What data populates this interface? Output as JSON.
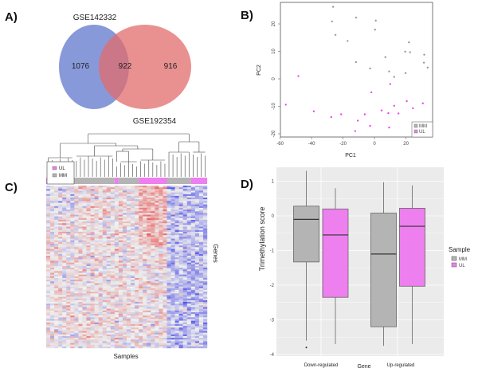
{
  "panels": {
    "a": "A)",
    "b": "B)",
    "c": "C)",
    "d": "D)"
  },
  "colors": {
    "blue": "#6a80cf",
    "red": "#e26c6c",
    "mm": "#b4b4b4",
    "ul": "#ee7fee",
    "mm_point": "#9a9a9a",
    "ul_point": "#ee44ee"
  },
  "chart_data": [
    {
      "type": "venn",
      "sets": [
        {
          "name": "GSE142332",
          "only": 1076
        },
        {
          "name": "GSE192354",
          "only": 916
        }
      ],
      "intersection": 922
    },
    {
      "type": "scatter",
      "xlabel": "PC1",
      "ylabel": "PC2",
      "xlim": [
        -60,
        37
      ],
      "ylim": [
        -21,
        28
      ],
      "xticks": [
        -60,
        -40,
        -20,
        0,
        20
      ],
      "yticks": [
        -20,
        -10,
        0,
        10,
        20
      ],
      "legend": {
        "position": "bottom-right",
        "entries": [
          "MM",
          "UL"
        ]
      },
      "series": [
        {
          "name": "MM",
          "points": [
            [
              -26.3,
              26.2
            ],
            [
              -27,
              20.9
            ],
            [
              -11.7,
              22.3
            ],
            [
              0.8,
              21.2
            ],
            [
              0.3,
              17.9
            ],
            [
              -24.8,
              16
            ],
            [
              -17.1,
              13.8
            ],
            [
              21.9,
              13.3
            ],
            [
              19.5,
              9.9
            ],
            [
              22.6,
              9.7
            ],
            [
              31.6,
              8.8
            ],
            [
              6.9,
              7.9
            ],
            [
              -11.8,
              6.1
            ],
            [
              31.4,
              5.9
            ],
            [
              33.8,
              4.1
            ],
            [
              -2.8,
              3.8
            ],
            [
              9.3,
              2.7
            ],
            [
              19.7,
              2.1
            ],
            [
              12.5,
              0.7
            ]
          ]
        },
        {
          "name": "UL",
          "points": [
            [
              -48.4,
              1.0
            ],
            [
              10,
              -1.9
            ],
            [
              -2,
              -4.9
            ],
            [
              -56.4,
              -9.4
            ],
            [
              -38.6,
              -11.8
            ],
            [
              -27.5,
              -13.9
            ],
            [
              -21.2,
              -12.9
            ],
            [
              -6.2,
              -12.9
            ],
            [
              -10.6,
              -15.2
            ],
            [
              -12.3,
              -19
            ],
            [
              -2.8,
              -17.1
            ],
            [
              4.5,
              -11.5
            ],
            [
              8.8,
              -12.5
            ],
            [
              12.5,
              -9.8
            ],
            [
              15.2,
              -12.6
            ],
            [
              9.3,
              -17.7
            ],
            [
              20.5,
              -8.1
            ],
            [
              24.4,
              -10.7
            ],
            [
              30.7,
              -8.9
            ]
          ]
        }
      ]
    },
    {
      "type": "heatmap",
      "xlabel": "Samples",
      "ylabel": "Genes",
      "legend": {
        "position": "top-left",
        "entries": [
          "UL",
          "MM"
        ]
      },
      "sample_groups": [
        "UL",
        "MM",
        "UL",
        "MM",
        "UL",
        "MM",
        "UL"
      ]
    },
    {
      "type": "box",
      "xlabel": "Gene",
      "ylabel": "Trimethylation score",
      "categories": [
        "Down-regulated",
        "Up-regulated"
      ],
      "ylim": [
        -4,
        1.4
      ],
      "yticks": [
        -4,
        -3,
        -2,
        -1,
        0,
        1
      ],
      "legend": {
        "title": "Sample",
        "position": "right",
        "entries": [
          "MM",
          "UL"
        ]
      },
      "series": [
        {
          "name": "MM",
          "boxes": [
            {
              "min": -3.6,
              "q1": -1.33,
              "median": -0.1,
              "q3": 0.28,
              "max": 1.3,
              "outliers": [
                -3.8
              ]
            },
            {
              "min": -3.75,
              "q1": -3.2,
              "median": -1.1,
              "q3": 0.08,
              "max": 0.97,
              "outliers": []
            }
          ]
        },
        {
          "name": "UL",
          "boxes": [
            {
              "min": -3.7,
              "q1": -2.35,
              "median": -0.55,
              "q3": 0.2,
              "max": 0.8,
              "outliers": []
            },
            {
              "min": -3.7,
              "q1": -2.03,
              "median": -0.3,
              "q3": 0.22,
              "max": 0.88,
              "outliers": []
            }
          ]
        }
      ]
    }
  ]
}
